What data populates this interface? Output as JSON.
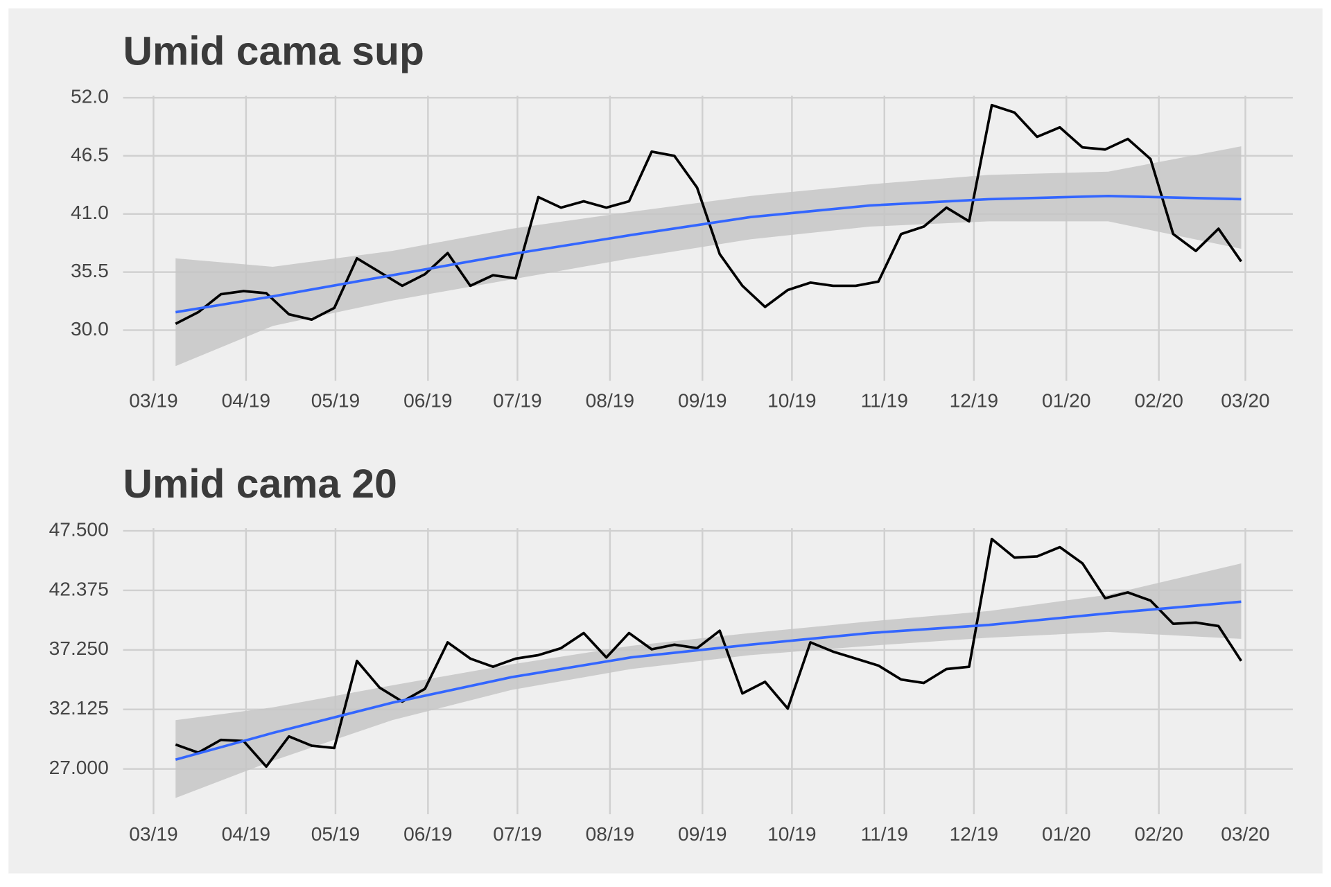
{
  "chart_data": [
    {
      "type": "line",
      "title": "Umid cama sup",
      "x": [
        7.4,
        15,
        22.6,
        30.2,
        37.8,
        45.4,
        53,
        60.6,
        68.2,
        75.8,
        83.4,
        91,
        98.6,
        106.2,
        113.8,
        121.4,
        129,
        136.6,
        144.2,
        151.8,
        159.4,
        167,
        174.6,
        182.2,
        189.8,
        197.4,
        205,
        212.6,
        220.2,
        227.8,
        235.4,
        243,
        250.6,
        258.2,
        265.8,
        273.4,
        281,
        288.6,
        296.2,
        303.8,
        311.4,
        319,
        326.6,
        334.2,
        341.8,
        349.4,
        357,
        364.6
      ],
      "series": [
        {
          "color": "#000000",
          "values": [
            30.6,
            31.7,
            33.4,
            33.7,
            33.5,
            31.5,
            31.0,
            32.1,
            36.8,
            35.5,
            34.2,
            35.3,
            37.3,
            34.2,
            35.2,
            34.9,
            42.6,
            41.6,
            42.2,
            41.6,
            42.2,
            46.9,
            46.5,
            43.5,
            37.2,
            34.2,
            32.2,
            33.8,
            34.5,
            34.2,
            34.2,
            34.6,
            39.1,
            39.8,
            41.6,
            40.3,
            51.3,
            50.6,
            48.3,
            49.2,
            47.3,
            47.1,
            48.1,
            46.2,
            39.1,
            37.5,
            39.6,
            36.5
          ]
        }
      ],
      "trend": {
        "color": "#3366ff",
        "band_color": "#c6c6c6",
        "x": [
          7.4,
          40,
          80,
          120,
          160,
          200,
          240,
          280,
          320,
          364.6
        ],
        "values": [
          31.7,
          33.2,
          35.2,
          37.2,
          39.0,
          40.7,
          41.8,
          42.4,
          42.7,
          42.4
        ],
        "lower": [
          26.6,
          30.4,
          32.8,
          34.8,
          36.8,
          38.6,
          39.8,
          40.3,
          40.3,
          37.7
        ],
        "upper": [
          36.8,
          36.0,
          37.5,
          39.6,
          41.2,
          42.7,
          43.8,
          44.7,
          45.0,
          47.4
        ]
      },
      "xlim": [
        -10.2,
        381.9
      ],
      "xticks": [
        {
          "value": 0,
          "label": "03/19"
        },
        {
          "value": 31,
          "label": "04/19"
        },
        {
          "value": 61,
          "label": "05/19"
        },
        {
          "value": 92,
          "label": "06/19"
        },
        {
          "value": 122,
          "label": "07/19"
        },
        {
          "value": 153,
          "label": "08/19"
        },
        {
          "value": 184,
          "label": "09/19"
        },
        {
          "value": 214,
          "label": "10/19"
        },
        {
          "value": 245,
          "label": "11/19"
        },
        {
          "value": 275,
          "label": "12/19"
        },
        {
          "value": 306,
          "label": "01/20"
        },
        {
          "value": 337,
          "label": "02/20"
        },
        {
          "value": 366,
          "label": "03/20"
        }
      ],
      "ylim": [
        25.2,
        52.6
      ],
      "yticks": [
        {
          "value": 30,
          "label": "30.0"
        },
        35.5,
        {
          "value": 41,
          "label": "41.0"
        },
        46.5,
        {
          "value": 52,
          "label": "52.0"
        }
      ],
      "grid": true
    },
    {
      "type": "line",
      "title": "Umid cama 20",
      "x": [
        7.4,
        15,
        22.6,
        30.2,
        37.8,
        45.4,
        53,
        60.6,
        68.2,
        75.8,
        83.4,
        91,
        98.6,
        106.2,
        113.8,
        121.4,
        129,
        136.6,
        144.2,
        151.8,
        159.4,
        167,
        174.6,
        182.2,
        189.8,
        197.4,
        205,
        212.6,
        220.2,
        227.8,
        235.4,
        243,
        250.6,
        258.2,
        265.8,
        273.4,
        281,
        288.6,
        296.2,
        303.8,
        311.4,
        319,
        326.6,
        334.2,
        341.8,
        349.4,
        357,
        364.6
      ],
      "series": [
        {
          "color": "#000000",
          "values": [
            29.1,
            28.4,
            29.5,
            29.4,
            27.2,
            29.8,
            29.0,
            28.8,
            36.3,
            34.0,
            32.8,
            33.9,
            37.9,
            36.5,
            35.8,
            36.5,
            36.8,
            37.4,
            38.7,
            36.6,
            38.7,
            37.3,
            37.7,
            37.4,
            38.9,
            33.5,
            34.5,
            32.2,
            37.9,
            37.1,
            36.5,
            35.9,
            34.7,
            34.4,
            35.6,
            35.8,
            46.8,
            45.2,
            45.3,
            46.1,
            44.7,
            41.7,
            42.2,
            41.5,
            39.5,
            39.6,
            39.3,
            36.3
          ]
        }
      ],
      "trend": {
        "color": "#3366ff",
        "band_color": "#c6c6c6",
        "x": [
          7.4,
          40,
          80,
          120,
          160,
          200,
          240,
          280,
          320,
          364.6
        ],
        "values": [
          27.8,
          30.1,
          32.7,
          34.9,
          36.6,
          37.7,
          38.7,
          39.4,
          40.4,
          41.4
        ],
        "lower": [
          24.5,
          27.7,
          31.2,
          33.8,
          35.6,
          36.8,
          37.6,
          38.3,
          38.8,
          38.2
        ],
        "upper": [
          31.2,
          32.3,
          34.2,
          36.0,
          37.6,
          38.7,
          39.7,
          40.6,
          42.0,
          44.7
        ]
      },
      "xlim": [
        -10.2,
        381.9
      ],
      "xticks": [
        {
          "value": 0,
          "label": "03/19"
        },
        {
          "value": 31,
          "label": "04/19"
        },
        {
          "value": 61,
          "label": "05/19"
        },
        {
          "value": 92,
          "label": "06/19"
        },
        {
          "value": 122,
          "label": "07/19"
        },
        {
          "value": 153,
          "label": "08/19"
        },
        {
          "value": 184,
          "label": "09/19"
        },
        {
          "value": 214,
          "label": "10/19"
        },
        {
          "value": 245,
          "label": "11/19"
        },
        {
          "value": 275,
          "label": "12/19"
        },
        {
          "value": 306,
          "label": "01/20"
        },
        {
          "value": 337,
          "label": "02/20"
        },
        {
          "value": 366,
          "label": "03/20"
        }
      ],
      "ylim": [
        23.1,
        48.1
      ],
      "yticks": [
        {
          "value": 27,
          "label": "27.000"
        },
        {
          "value": 32.125,
          "label": "32.125"
        },
        {
          "value": 37.25,
          "label": "37.250"
        },
        {
          "value": 42.375,
          "label": "42.375"
        },
        {
          "value": 47.5,
          "label": "47.500"
        }
      ],
      "grid": true
    }
  ]
}
